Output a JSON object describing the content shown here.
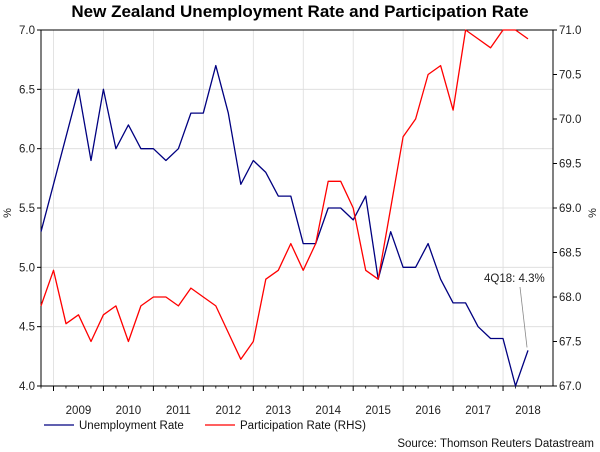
{
  "chart_data": {
    "type": "line",
    "title": "New Zealand Unemployment Rate and Participation Rate",
    "x_labels": [
      "2009",
      "2010",
      "2011",
      "2012",
      "2013",
      "2014",
      "2015",
      "2016",
      "2017",
      "2018"
    ],
    "x_range": [
      2008.75,
      2019.0
    ],
    "ylabel_left": "%",
    "ylabel_right": "%",
    "ylim_left": [
      4.0,
      7.0
    ],
    "ylim_right": [
      67.0,
      71.0
    ],
    "yticks_left": [
      "4.0",
      "4.5",
      "5.0",
      "5.5",
      "6.0",
      "6.5",
      "7.0"
    ],
    "yticks_right": [
      "67.0",
      "67.5",
      "68.0",
      "68.5",
      "69.0",
      "69.5",
      "70.0",
      "70.5",
      "71.0"
    ],
    "grid": true,
    "legend_position": "bottom-left",
    "x": [
      2008.75,
      2009.0,
      2009.25,
      2009.5,
      2009.75,
      2010.0,
      2010.25,
      2010.5,
      2010.75,
      2011.0,
      2011.25,
      2011.5,
      2011.75,
      2012.0,
      2012.25,
      2012.5,
      2012.75,
      2013.0,
      2013.25,
      2013.5,
      2013.75,
      2014.0,
      2014.25,
      2014.5,
      2014.75,
      2015.0,
      2015.25,
      2015.5,
      2015.75,
      2016.0,
      2016.25,
      2016.5,
      2016.75,
      2017.0,
      2017.25,
      2017.5,
      2017.75,
      2018.0,
      2018.25,
      2018.5
    ],
    "series": [
      {
        "name": "Unemployment Rate",
        "axis": "left",
        "color": "#000080",
        "values": [
          5.3,
          5.7,
          6.1,
          6.5,
          5.9,
          6.5,
          6.0,
          6.2,
          6.0,
          6.0,
          5.9,
          6.0,
          6.3,
          6.3,
          6.7,
          6.3,
          5.7,
          5.9,
          5.8,
          5.6,
          5.6,
          5.2,
          5.2,
          5.5,
          5.5,
          5.4,
          5.6,
          4.9,
          5.3,
          5.0,
          5.0,
          5.2,
          4.9,
          4.7,
          4.7,
          4.5,
          4.4,
          4.4,
          4.0,
          4.3
        ]
      },
      {
        "name": "Participation Rate (RHS)",
        "axis": "right",
        "color": "#ff0000",
        "values": [
          67.9,
          68.3,
          67.7,
          67.8,
          67.5,
          67.8,
          67.9,
          67.5,
          67.9,
          68.0,
          68.0,
          67.9,
          68.1,
          68.0,
          67.9,
          67.6,
          67.3,
          67.5,
          68.2,
          68.3,
          68.6,
          68.3,
          68.6,
          69.3,
          69.3,
          69.0,
          68.3,
          68.2,
          69.0,
          69.8,
          70.0,
          70.5,
          70.6,
          70.1,
          71.0,
          70.9,
          70.8,
          71.0,
          71.0,
          70.9
        ]
      }
    ],
    "annotation": "4Q18: 4.3%",
    "source": "Source: Thomson Reuters Datastream"
  }
}
